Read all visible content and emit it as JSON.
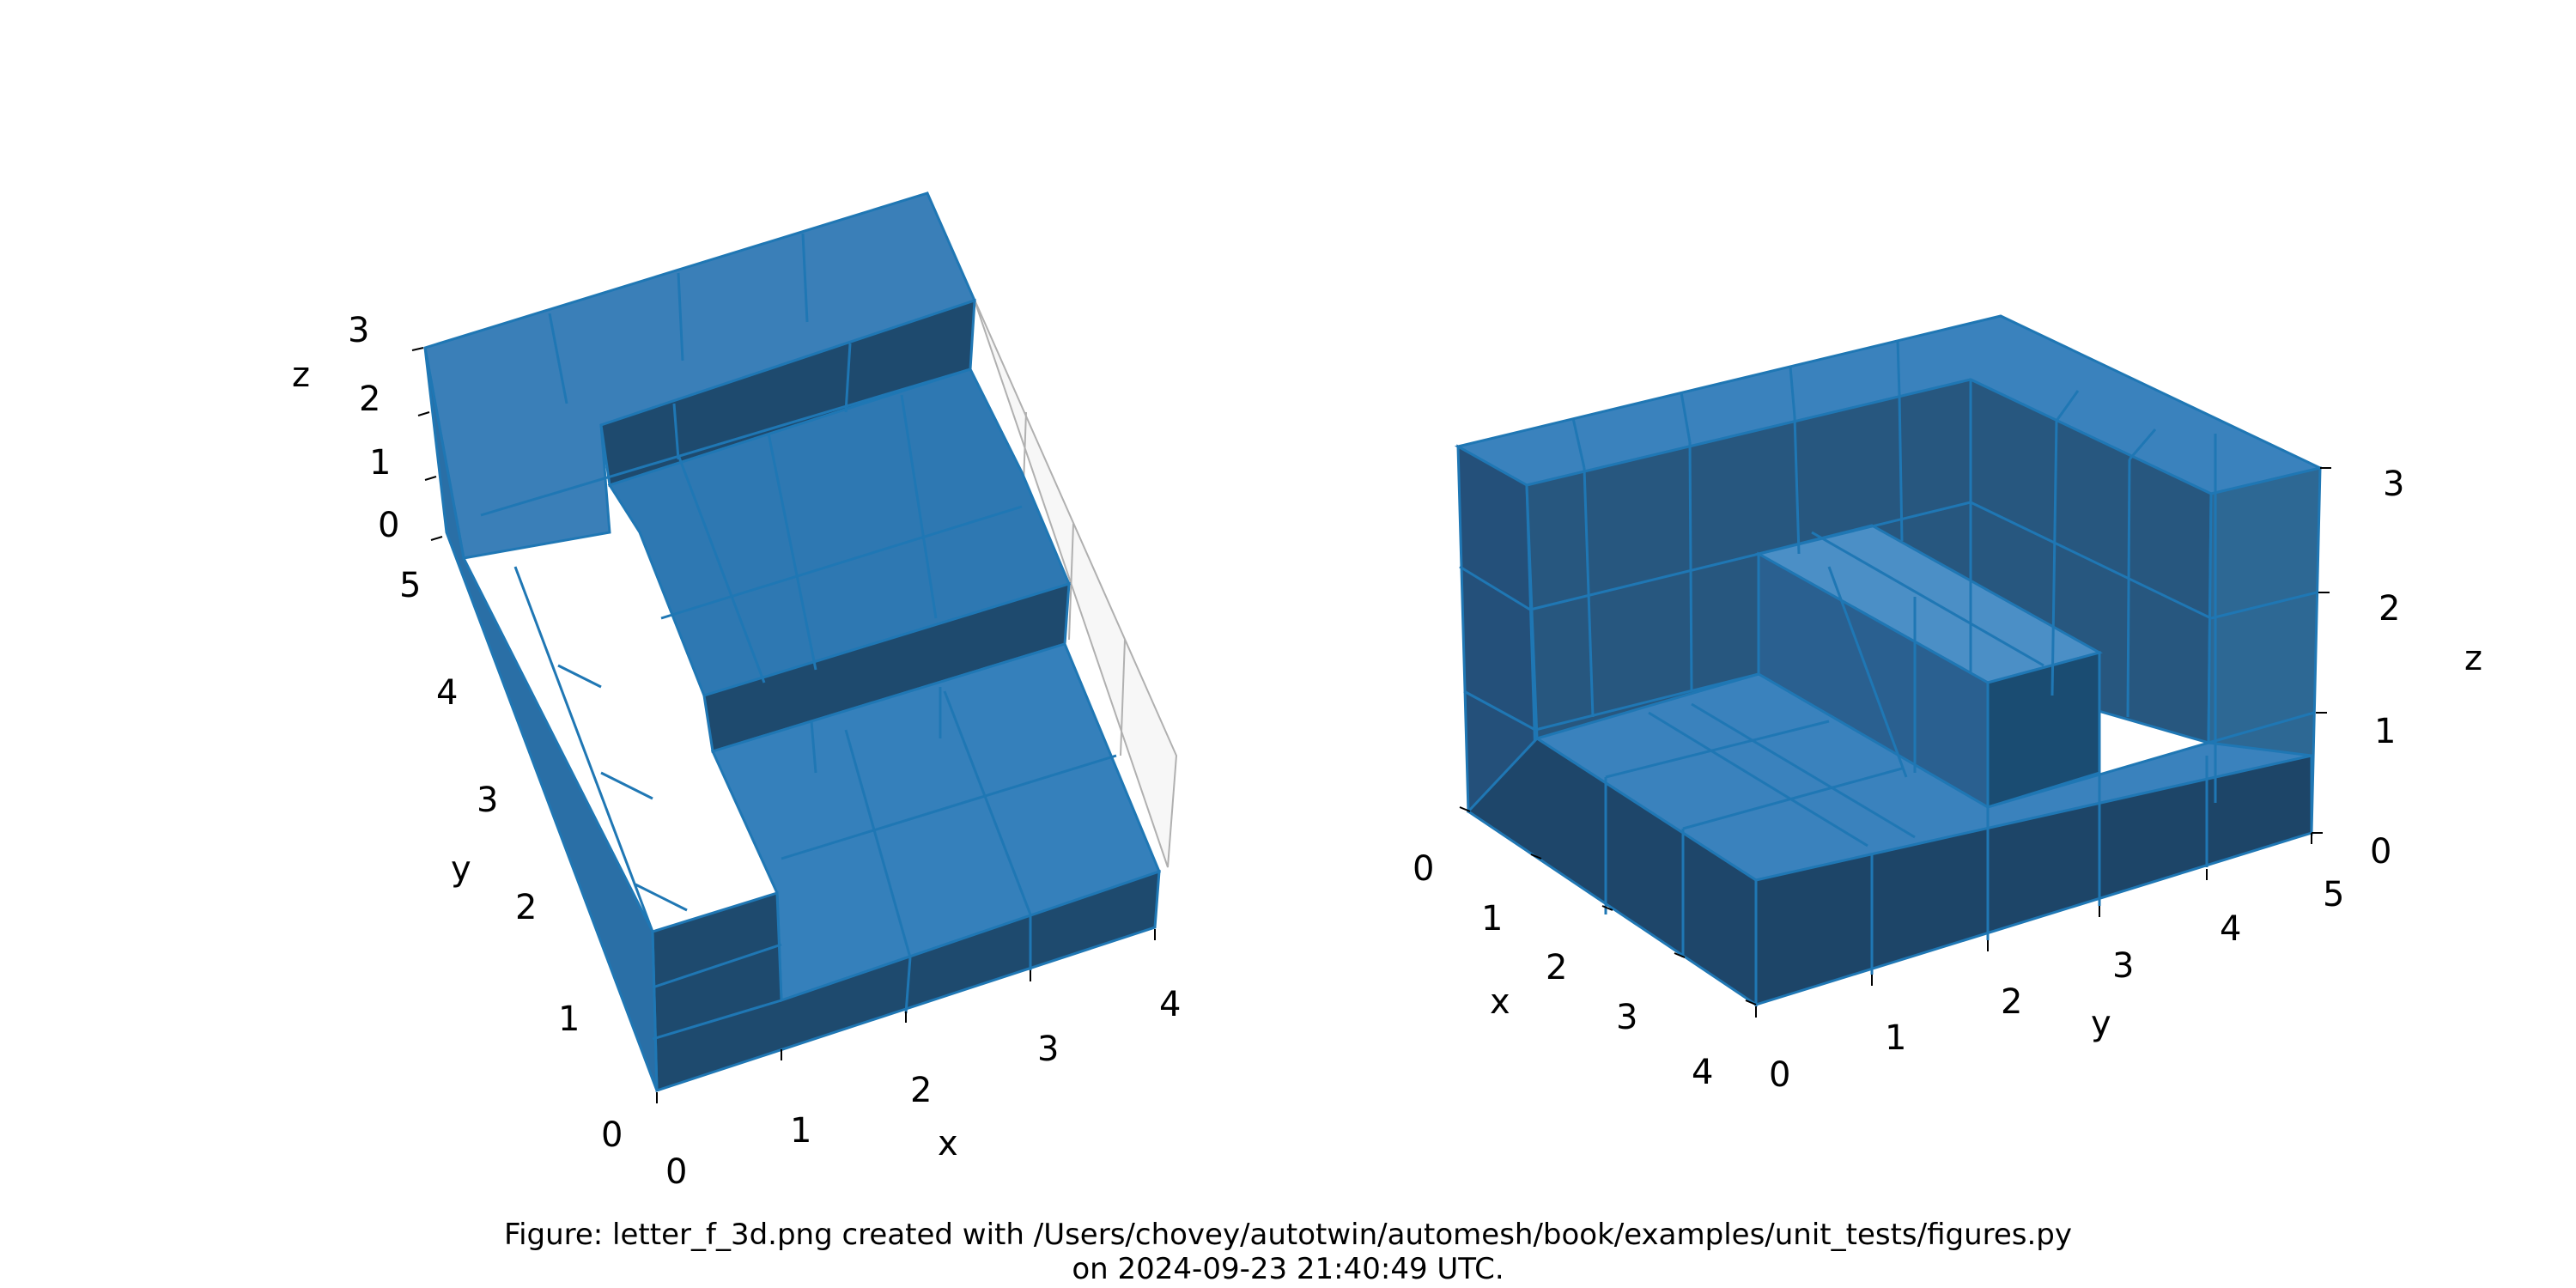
{
  "caption": {
    "line1": "Figure: letter_f_3d.png created with /Users/chovey/autotwin/automesh/book/examples/unit_tests/figures.py",
    "line2": "on 2024-09-23 21:40:49 UTC."
  },
  "colors": {
    "face": "#1f77b4",
    "edge": "#1f77b4",
    "dark": "#1b3f5c",
    "pane": "#f2f2f2",
    "grid": "#b0b0b0"
  },
  "left_view": {
    "x_label": "x",
    "y_label": "y",
    "z_label": "z",
    "x_ticks": [
      "0",
      "1",
      "2",
      "3",
      "4"
    ],
    "y_ticks": [
      "0",
      "1",
      "2",
      "3",
      "4",
      "5"
    ],
    "z_ticks": [
      "0",
      "1",
      "2",
      "3"
    ]
  },
  "right_view": {
    "x_label": "x",
    "y_label": "y",
    "z_label": "z",
    "x_ticks": [
      "0",
      "1",
      "2",
      "3",
      "4"
    ],
    "y_ticks": [
      "0",
      "1",
      "2",
      "3",
      "4",
      "5"
    ],
    "z_ticks": [
      "0",
      "1",
      "2",
      "3"
    ]
  }
}
